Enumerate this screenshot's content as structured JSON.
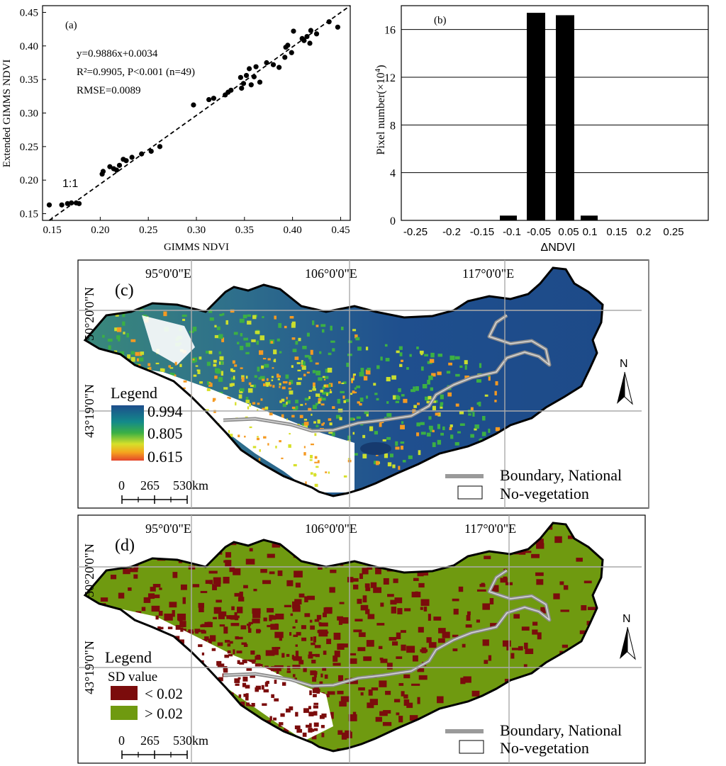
{
  "chart_data": [
    {
      "panel": "(a)",
      "type": "scatter",
      "xlabel": "GIMMS NDVI",
      "ylabel": "Extended GIMMS NDVI",
      "xlim": [
        0.14,
        0.46
      ],
      "ylim": [
        0.14,
        0.46
      ],
      "xticks": [
        "0.15",
        "0.20",
        "0.25",
        "0.30",
        "0.35",
        "0.40",
        "0.45"
      ],
      "yticks": [
        "0.15",
        "0.20",
        "0.25",
        "0.30",
        "0.35",
        "0.40",
        "0.45"
      ],
      "annotations": [
        "y=0.9886x+0.0034",
        "R²=0.9905, P<0.001 (n=49)",
        "RMSE=0.0089"
      ],
      "line_label": "1:1",
      "points": [
        [
          0.147,
          0.163
        ],
        [
          0.16,
          0.163
        ],
        [
          0.166,
          0.165
        ],
        [
          0.17,
          0.166
        ],
        [
          0.175,
          0.166
        ],
        [
          0.178,
          0.165
        ],
        [
          0.202,
          0.209
        ],
        [
          0.203,
          0.213
        ],
        [
          0.21,
          0.22
        ],
        [
          0.214,
          0.217
        ],
        [
          0.217,
          0.215
        ],
        [
          0.22,
          0.222
        ],
        [
          0.224,
          0.231
        ],
        [
          0.227,
          0.229
        ],
        [
          0.233,
          0.234
        ],
        [
          0.243,
          0.239
        ],
        [
          0.253,
          0.243
        ],
        [
          0.262,
          0.25
        ],
        [
          0.297,
          0.312
        ],
        [
          0.313,
          0.32
        ],
        [
          0.318,
          0.322
        ],
        [
          0.33,
          0.327
        ],
        [
          0.333,
          0.331
        ],
        [
          0.336,
          0.334
        ],
        [
          0.346,
          0.353
        ],
        [
          0.347,
          0.337
        ],
        [
          0.349,
          0.344
        ],
        [
          0.352,
          0.356
        ],
        [
          0.355,
          0.366
        ],
        [
          0.357,
          0.342
        ],
        [
          0.36,
          0.354
        ],
        [
          0.362,
          0.369
        ],
        [
          0.366,
          0.346
        ],
        [
          0.373,
          0.375
        ],
        [
          0.38,
          0.372
        ],
        [
          0.386,
          0.368
        ],
        [
          0.392,
          0.383
        ],
        [
          0.393,
          0.398
        ],
        [
          0.395,
          0.401
        ],
        [
          0.399,
          0.39
        ],
        [
          0.401,
          0.422
        ],
        [
          0.41,
          0.411
        ],
        [
          0.412,
          0.408
        ],
        [
          0.415,
          0.414
        ],
        [
          0.418,
          0.404
        ],
        [
          0.419,
          0.423
        ],
        [
          0.425,
          0.418
        ],
        [
          0.438,
          0.436
        ],
        [
          0.447,
          0.428
        ]
      ]
    },
    {
      "panel": "(b)",
      "type": "bar",
      "xlabel": "ΔNDVI",
      "ylabel_main": "Pixel number(×10",
      "ylabel_sup": "4",
      "ylabel_end": ")",
      "ylim": [
        0,
        18
      ],
      "yticks": [
        "0",
        "4",
        "8",
        "12",
        "16"
      ],
      "xticks": [
        "-0.25",
        "-0.2",
        "-0.15",
        "-0.1",
        "-0.05",
        "0.05",
        "0.1",
        "0.15",
        "0.2",
        "0.25"
      ],
      "bars": [
        {
          "center": -0.1,
          "value": 0.4
        },
        {
          "center": -0.05,
          "value": 17.4
        },
        {
          "center": 0.05,
          "value": 17.2
        },
        {
          "center": 0.1,
          "value": 0.4
        }
      ]
    },
    {
      "panel": "(c)",
      "type": "heatmap",
      "lon_labels": [
        "95°0'0\"E",
        "106°0'0\"E",
        "117°0'0\"E"
      ],
      "lat_labels": [
        "50°20'0\"N",
        "43°19'0\"N"
      ],
      "legend_title": "Legend",
      "legend_values": [
        "0.994",
        "0.805",
        "0.615"
      ],
      "scale": {
        "ticks": [
          "0",
          "265",
          "530km"
        ]
      },
      "boundary_label": "Boundary, National",
      "novegetation_label": "No-vegetation",
      "north": "N"
    },
    {
      "panel": "(d)",
      "type": "heatmap",
      "lon_labels": [
        "95°0'0\"E",
        "106°0'0\"E",
        "117°0'0\"E"
      ],
      "lat_labels": [
        "50°20'0\"N",
        "43°19'0\"N"
      ],
      "legend_title": "Legend",
      "legend_subtitle": "SD value",
      "classes": [
        {
          "label": "< 0.02",
          "color": "#7b0c0c"
        },
        {
          "label": "> 0.02",
          "color": "#6f9a10"
        }
      ],
      "scale": {
        "ticks": [
          "0",
          "265",
          "530km"
        ]
      },
      "boundary_label": "Boundary, National",
      "novegetation_label": "No-vegetation",
      "north": "N"
    }
  ],
  "colors": {
    "ndvi_high": "#1d4d8c",
    "ndvi_mid": "#2aa84a",
    "ndvi_low": "#e8542a",
    "sd_low": "#7b0c0c",
    "sd_high": "#6f9a10",
    "boundary_gray": "#9a9a9a"
  }
}
